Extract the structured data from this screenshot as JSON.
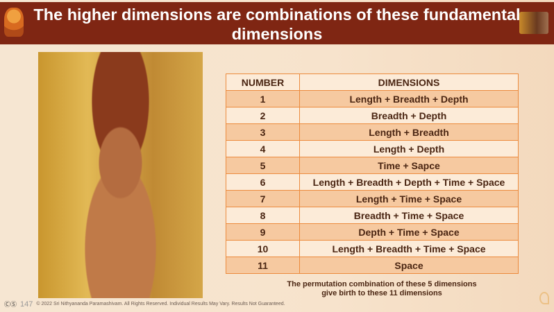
{
  "title": "The higher dimensions are combinations of these fundamental dimensions",
  "table": {
    "headers": [
      "NUMBER",
      "DIMENSIONS"
    ],
    "rows": [
      [
        "1",
        "Length + Breadth + Depth"
      ],
      [
        "2",
        "Breadth + Depth"
      ],
      [
        "3",
        "Length + Breadth"
      ],
      [
        "4",
        "Length + Depth"
      ],
      [
        "5",
        "Time + Sapce"
      ],
      [
        "6",
        "Length + Breadth + Depth + Time + Space"
      ],
      [
        "7",
        "Length + Time + Space"
      ],
      [
        "8",
        "Breadth + Time + Space"
      ],
      [
        "9",
        "Depth + Time + Space"
      ],
      [
        "10",
        "Length + Breadth + Time + Space"
      ],
      [
        "11",
        "Space"
      ]
    ]
  },
  "caption": {
    "line1": "The permutation combination of these 5 dimensions",
    "line2": "give birth to these 11 dimensions"
  },
  "footer": {
    "license_icon": "cc-icon",
    "license": "ⒸⓈ",
    "page": "147",
    "copyright": "© 2022 Sri Nithyananda Paramashivam. All Rights Reserved. Individual Results May Vary. Results Not Guaranteed."
  },
  "colors": {
    "header_bg": "#7f2613",
    "row_odd": "#f6c9a0",
    "row_even": "#fcebd8",
    "border": "#ec8a3c",
    "text": "#4a2512"
  }
}
